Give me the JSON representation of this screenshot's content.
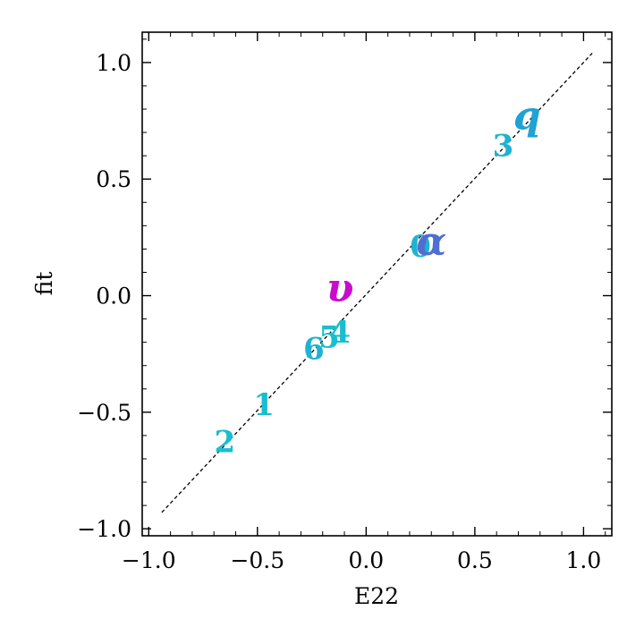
{
  "chart_data": {
    "type": "scatter",
    "xlabel": "E22",
    "ylabel": "fit",
    "xlim": [
      -1.03,
      1.13
    ],
    "ylim": [
      -1.03,
      1.13
    ],
    "xticks": [
      -1.0,
      -0.5,
      0.0,
      0.5,
      1.0
    ],
    "yticks": [
      -1.0,
      -0.5,
      0.0,
      0.5,
      1.0
    ],
    "xtick_labels": [
      "−1.0",
      "−0.5",
      "0.0",
      "0.5",
      "1.0"
    ],
    "ytick_labels": [
      "−1.0",
      "−0.5",
      "0.0",
      "0.5",
      "1.0"
    ],
    "minor_tick_step": 0.1,
    "grid": false,
    "reference_line": {
      "style": "dashed",
      "color": "#000000",
      "x": [
        -0.94,
        1.04
      ],
      "y": [
        -0.93,
        1.04
      ]
    },
    "points": [
      {
        "label": "0",
        "x": 0.25,
        "y": 0.21,
        "color": "#1fb3d1"
      },
      {
        "label": "1",
        "x": -0.47,
        "y": -0.47,
        "color": "#17becf"
      },
      {
        "label": "2",
        "x": -0.65,
        "y": -0.63,
        "color": "#17becf"
      },
      {
        "label": "3",
        "x": 0.63,
        "y": 0.64,
        "color": "#1fb3d1"
      },
      {
        "label": "4",
        "x": -0.12,
        "y": -0.16,
        "color": "#17becf"
      },
      {
        "label": "5",
        "x": -0.17,
        "y": -0.18,
        "color": "#17becf"
      },
      {
        "label": "6",
        "x": -0.24,
        "y": -0.23,
        "color": "#1fb3d1"
      },
      {
        "label": "q",
        "x": 0.74,
        "y": 0.77,
        "color": "#1fa2d4",
        "italic": true
      },
      {
        "label": "α",
        "x": 0.3,
        "y": 0.23,
        "color": "#4f6fd0",
        "italic": true
      },
      {
        "label": "υ",
        "x": -0.12,
        "y": 0.03,
        "color": "#c80ccd",
        "italic": true
      }
    ]
  }
}
